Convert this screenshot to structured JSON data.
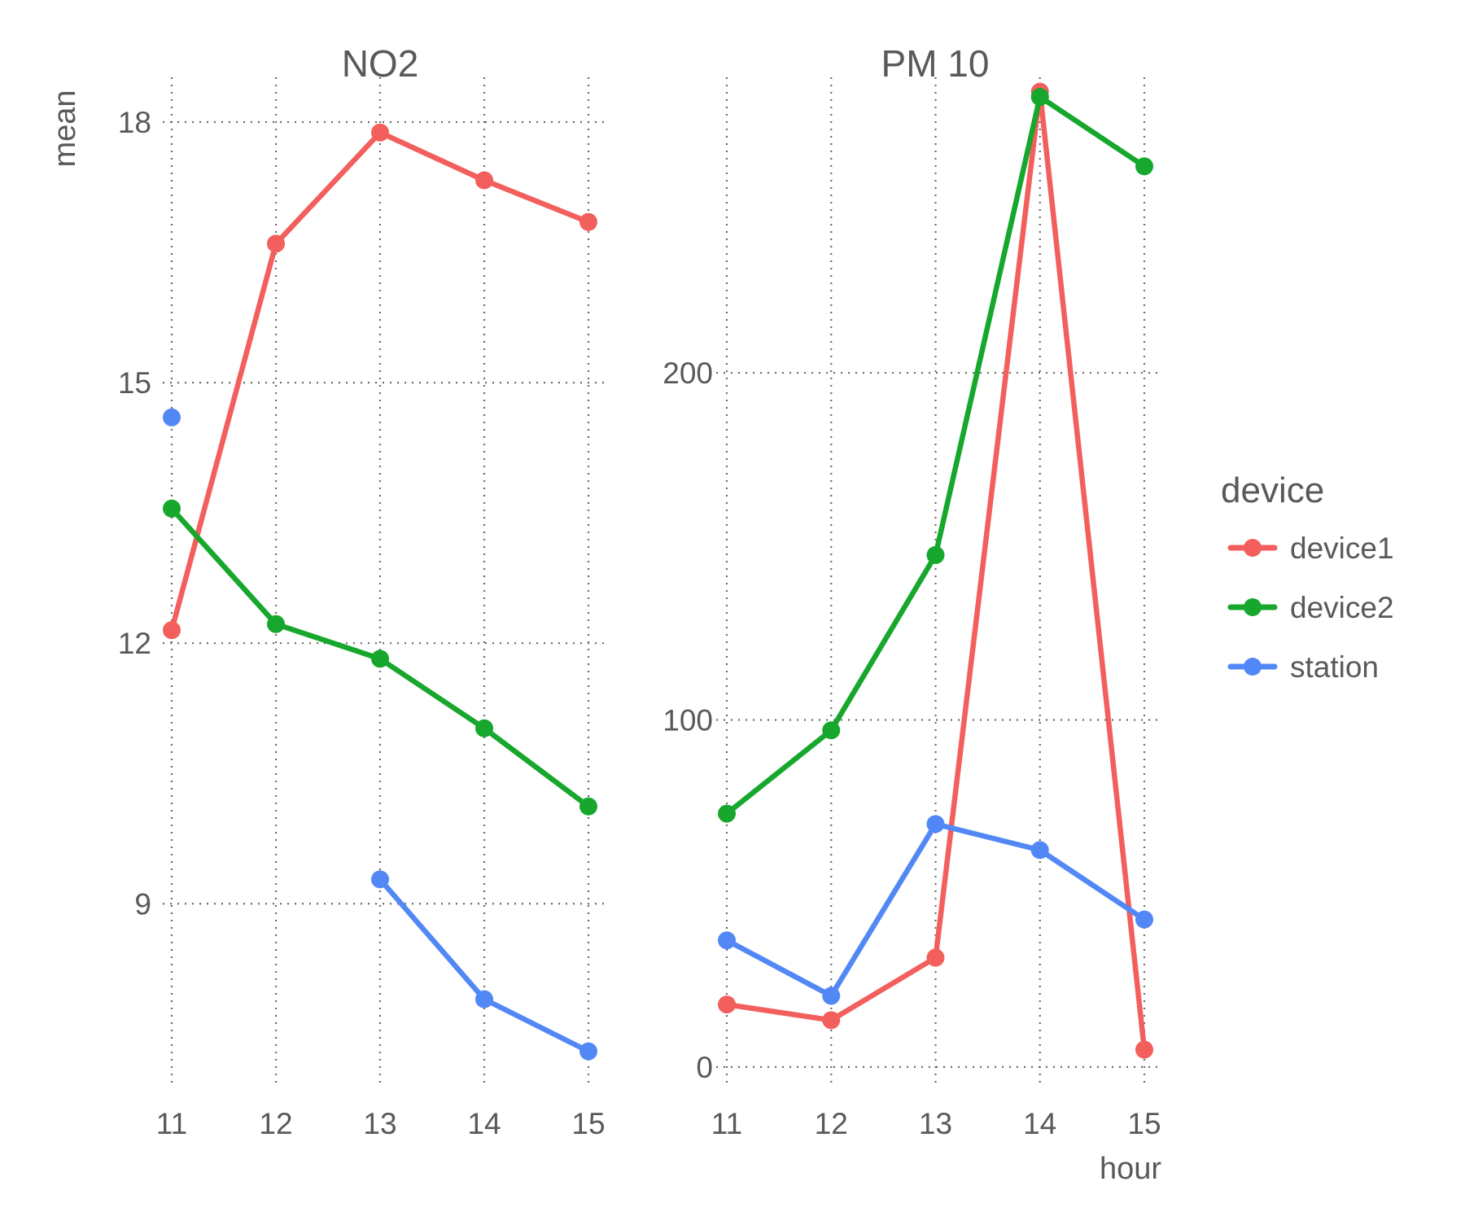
{
  "chart_data": {
    "type": "line",
    "facet_variable": "pollutant",
    "x_label": "hour",
    "y_label": "mean",
    "grid": true,
    "legend": {
      "title": "device",
      "placement": "right",
      "entries": [
        {
          "name": "device1",
          "color": "#F25F5C"
        },
        {
          "name": "device2",
          "color": "#16A72C"
        },
        {
          "name": "station",
          "color": "#5288F5"
        }
      ]
    },
    "panels": [
      {
        "title": "NO2",
        "x": [
          11,
          12,
          13,
          14,
          15
        ],
        "x_ticks": [
          11,
          12,
          13,
          14,
          15
        ],
        "y_ticks": [
          9,
          12,
          15,
          18
        ],
        "ylim": [
          6.8,
          18.75
        ],
        "series": [
          {
            "name": "device1",
            "values": [
              12.15,
              16.6,
              17.88,
              17.33,
              16.85
            ]
          },
          {
            "name": "device2",
            "values": [
              13.55,
              12.22,
              11.82,
              11.02,
              10.12
            ]
          },
          {
            "name": "station",
            "values": [
              14.6,
              null,
              9.28,
              7.9,
              7.3
            ]
          }
        ]
      },
      {
        "title": "PM 10",
        "x": [
          11,
          12,
          13,
          14,
          15
        ],
        "x_ticks": [
          11,
          12,
          13,
          14,
          15
        ],
        "y_ticks": [
          0,
          100,
          200
        ],
        "ylim": [
          -8,
          291
        ],
        "series": [
          {
            "name": "device1",
            "values": [
              18,
              13.5,
              31.5,
              281,
              5
            ]
          },
          {
            "name": "device2",
            "values": [
              73,
              97,
              147.5,
              279.5,
              259.5
            ]
          },
          {
            "name": "station",
            "values": [
              36.5,
              20.5,
              70,
              62.5,
              42.5
            ]
          }
        ]
      }
    ]
  }
}
